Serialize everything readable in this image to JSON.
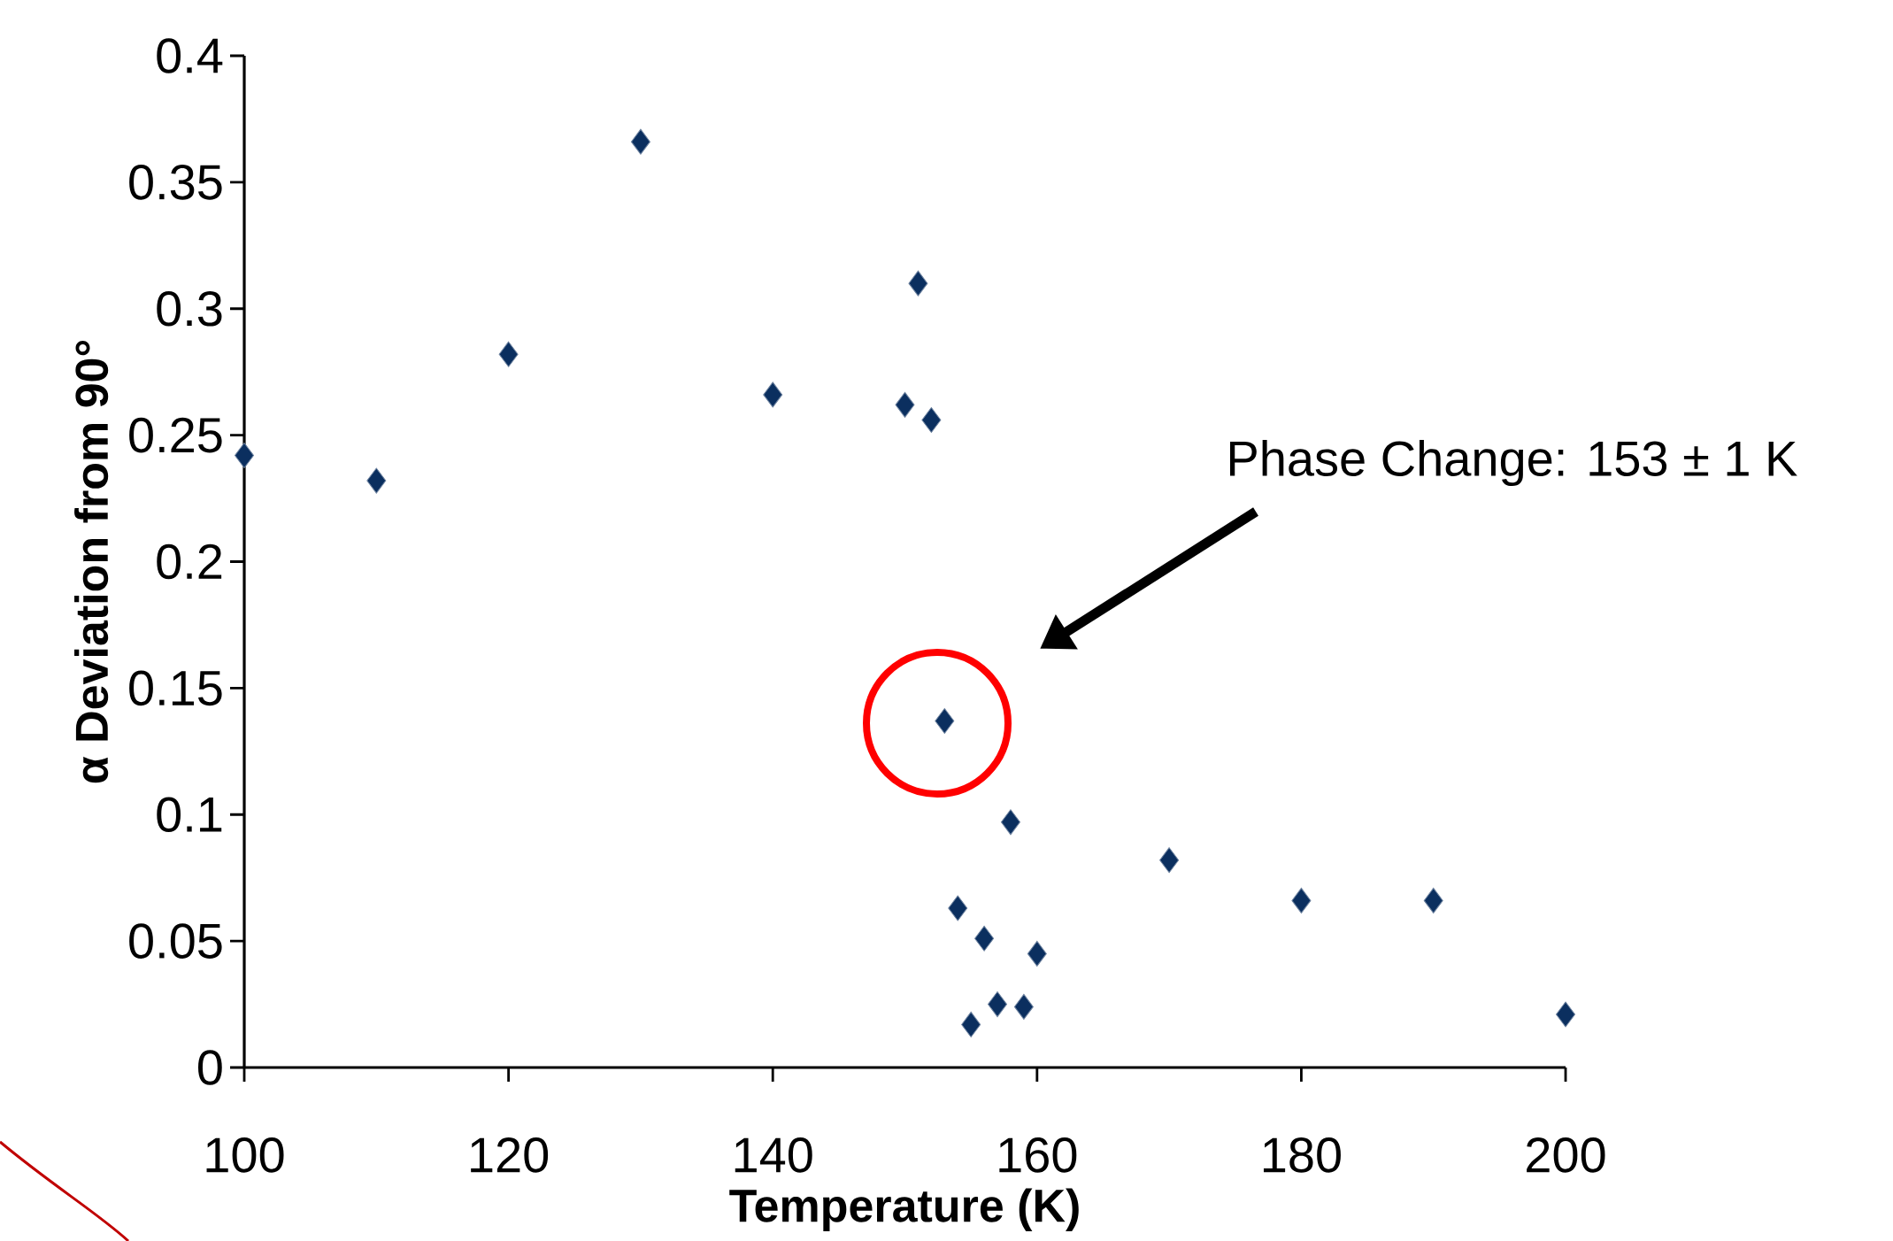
{
  "chart_data": {
    "type": "scatter",
    "xlabel": "Temperature (K)",
    "ylabel": "α Deviation from 90°",
    "x": [
      100,
      110,
      120,
      130,
      140,
      150,
      151,
      152,
      153,
      154,
      155,
      156,
      157,
      158,
      159,
      160,
      170,
      180,
      190,
      200
    ],
    "series": [
      {
        "color": "#0b2f5f",
        "values": [
          0.242,
          0.232,
          0.282,
          0.366,
          0.266,
          0.262,
          0.31,
          0.256,
          0.137,
          0.063,
          0.017,
          0.051,
          0.025,
          0.097,
          0.024,
          0.045,
          0.082,
          0.066,
          0.066,
          0.021
        ]
      }
    ],
    "marker": "diamond",
    "xlim": [
      100,
      200
    ],
    "xticks": [
      100,
      120,
      140,
      160,
      180,
      200
    ],
    "ylim": [
      0,
      0.4
    ],
    "yticks": [
      0,
      0.05,
      0.1,
      0.15,
      0.2,
      0.25,
      0.3,
      0.35,
      0.4
    ],
    "grid": false,
    "annotations": [
      "Phase Change: 153 ± 1 K"
    ]
  }
}
